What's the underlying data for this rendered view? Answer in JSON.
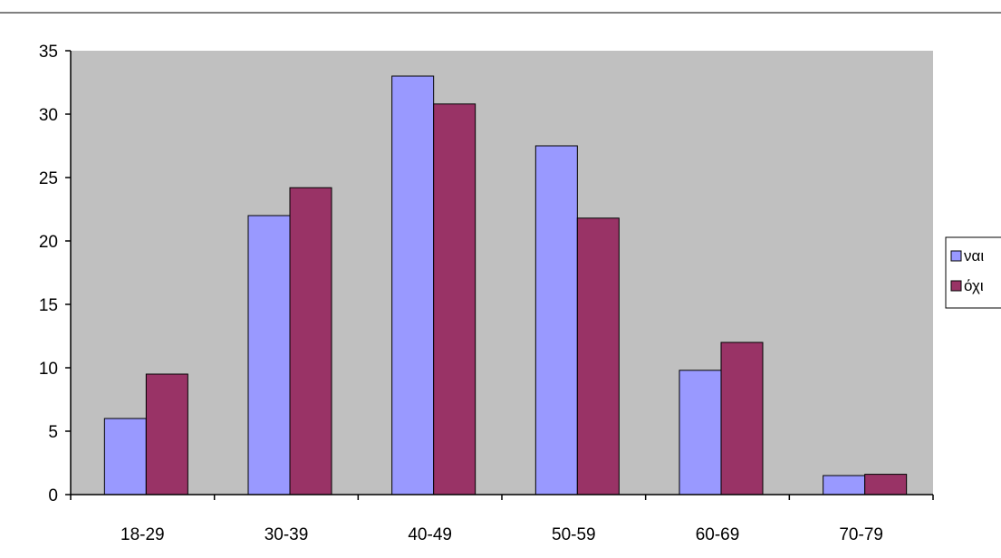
{
  "chart_data": {
    "type": "bar",
    "title": "",
    "xlabel": "",
    "ylabel": "",
    "categories": [
      "18-29",
      "30-39",
      "40-49",
      "50-59",
      "60-69",
      "70-79"
    ],
    "series": [
      {
        "name": "ναι",
        "color": "#9999ff",
        "values": [
          6,
          22,
          33,
          27.5,
          9.8,
          1.5
        ]
      },
      {
        "name": "όχι",
        "color": "#993366",
        "values": [
          9.5,
          24.2,
          30.8,
          21.8,
          12,
          1.6
        ]
      }
    ],
    "ylim": [
      0,
      35
    ],
    "yticks": [
      0,
      5,
      10,
      15,
      20,
      25,
      30,
      35
    ],
    "grid": false,
    "plot_background": "#c0c0c0",
    "legend": {
      "placement": "right"
    }
  }
}
